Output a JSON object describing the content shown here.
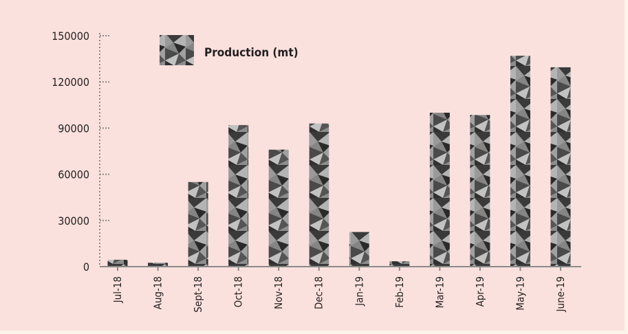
{
  "chart_data": {
    "type": "bar",
    "categories": [
      "Jul-18",
      "Aug-18",
      "Sept-18",
      "Oct-18",
      "Nov-18",
      "Dec-18",
      "Jan-19",
      "Feb-19",
      "Mar-19",
      "Apr-19",
      "May-19",
      "June-19"
    ],
    "series": [
      {
        "name": "Production (mt)",
        "values": [
          4500,
          2500,
          55000,
          92000,
          76000,
          93000,
          22500,
          3500,
          100000,
          98500,
          137000,
          129500
        ]
      }
    ],
    "y_ticks": [
      "0",
      "30000",
      "60000",
      "90000",
      "120000",
      "150000"
    ],
    "ylim": [
      0,
      150000
    ],
    "legend_position": "top-left",
    "bar_fill": "#6e6e6e",
    "axis_color": "#8a8a8a"
  }
}
